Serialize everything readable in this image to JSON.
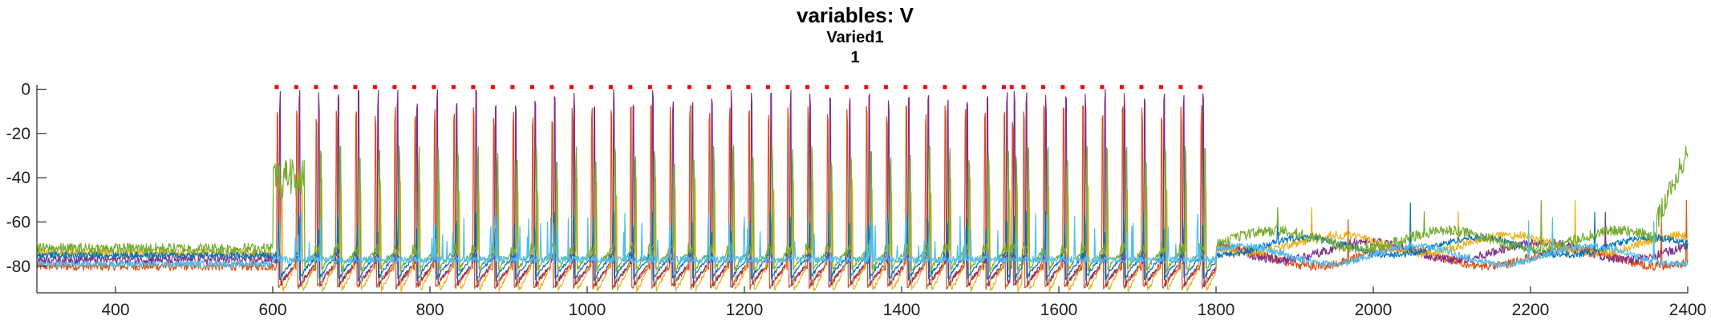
{
  "chart_data": {
    "type": "line",
    "title": "variables: V",
    "subtitle": "Varied1",
    "subtitle2": "1",
    "xlabel": "",
    "ylabel": "",
    "xlim": [
      300,
      2400
    ],
    "ylim": [
      -92,
      2
    ],
    "x_ticks": [
      400,
      600,
      800,
      1000,
      1200,
      1400,
      1600,
      1800,
      2000,
      2200,
      2400
    ],
    "y_ticks": [
      0,
      -20,
      -40,
      -60,
      -80
    ],
    "grid": false,
    "legend": "none",
    "series": [
      {
        "color": "#D95319",
        "baseline": -80,
        "spike_peak": -12,
        "trough": -90,
        "noise": 2
      },
      {
        "color": "#7E2F8E",
        "baseline": -77,
        "spike_peak": -5,
        "trough": -89,
        "noise": 2
      },
      {
        "color": "#EDB120",
        "baseline": -74,
        "spike_peak": -45,
        "trough": -91,
        "noise": 2
      },
      {
        "color": "#0072BD",
        "baseline": -75,
        "spike_peak": -60,
        "trough": -86,
        "noise": 1.5
      },
      {
        "color": "#77AC30",
        "baseline": -72,
        "spike_peak": -30,
        "trough": -82,
        "noise": 2.5
      },
      {
        "color": "#4DBEEE",
        "baseline": -79,
        "spike_peak": -58,
        "trough": -83,
        "noise": 1.5
      }
    ],
    "markers": {
      "color": "#FF0000",
      "y": 1,
      "x": [
        605,
        630,
        655,
        680,
        705,
        730,
        755,
        780,
        805,
        830,
        855,
        880,
        905,
        930,
        955,
        980,
        1005,
        1030,
        1055,
        1080,
        1105,
        1130,
        1155,
        1180,
        1205,
        1230,
        1255,
        1280,
        1305,
        1330,
        1355,
        1380,
        1405,
        1430,
        1455,
        1480,
        1505,
        1530,
        1540,
        1555,
        1580,
        1605,
        1630,
        1655,
        1680,
        1705,
        1730,
        1755,
        1780
      ]
    }
  }
}
